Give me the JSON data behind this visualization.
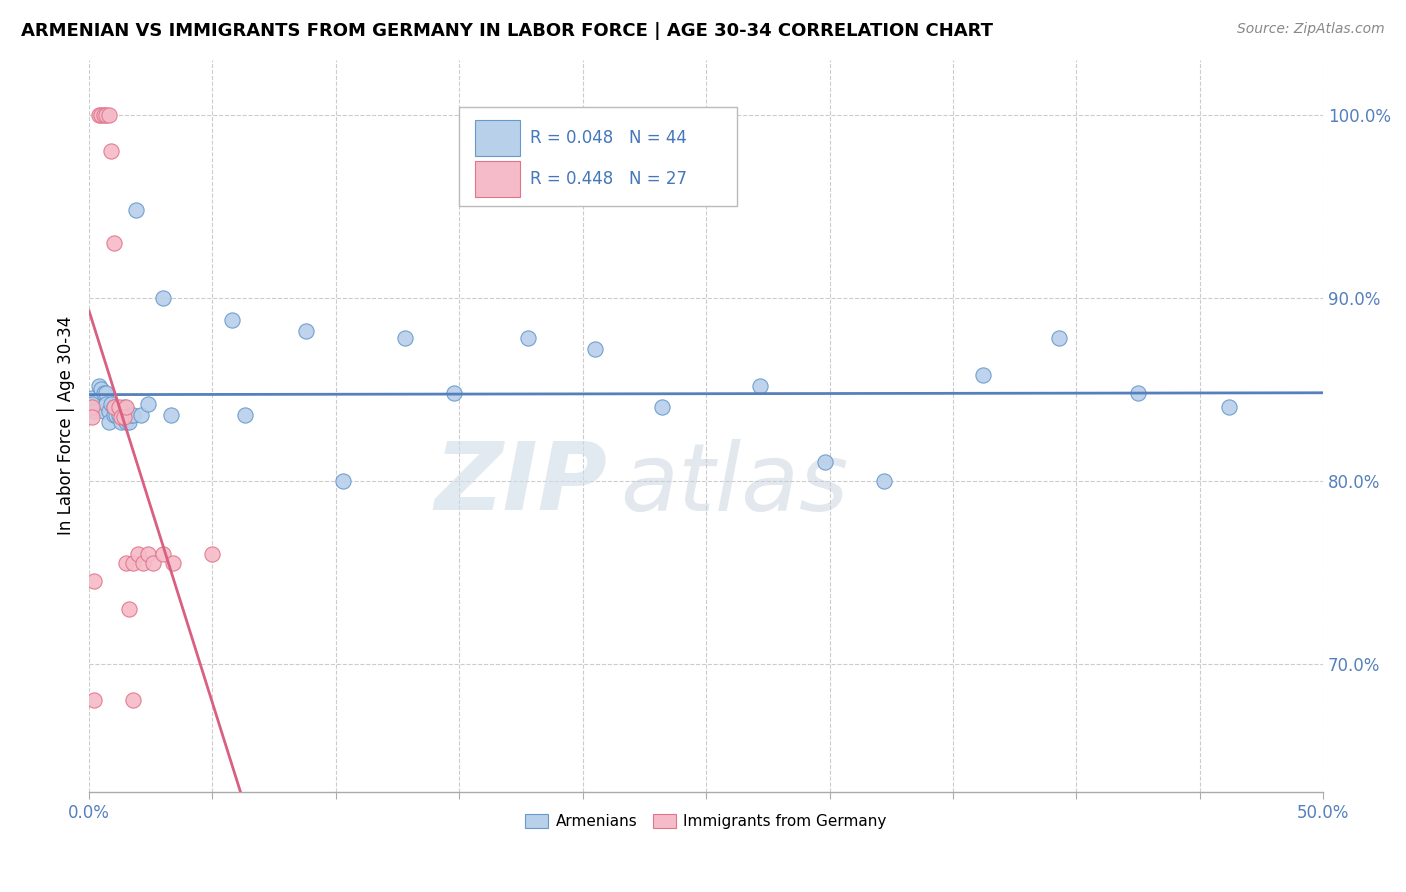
{
  "title": "ARMENIAN VS IMMIGRANTS FROM GERMANY IN LABOR FORCE | AGE 30-34 CORRELATION CHART",
  "source": "Source: ZipAtlas.com",
  "ylabel": "In Labor Force | Age 30-34",
  "xlim": [
    0.0,
    0.5
  ],
  "ylim": [
    0.63,
    1.03
  ],
  "yticks": [
    0.7,
    0.8,
    0.9,
    1.0
  ],
  "ytick_labels": [
    "70.0%",
    "80.0%",
    "90.0%",
    "100.0%"
  ],
  "watermark_zip": "ZIP",
  "watermark_atlas": "atlas",
  "legend_blue_r": "R = 0.048",
  "legend_blue_n": "N = 44",
  "legend_pink_r": "R = 0.448",
  "legend_pink_n": "N = 27",
  "blue_fill": "#b8d0ea",
  "blue_edge": "#6699cc",
  "pink_fill": "#f5bbc8",
  "pink_edge": "#e0748a",
  "blue_line": "#5580bb",
  "pink_line": "#d96080",
  "legend_r_color": "#4477bb",
  "legend_n_color": "#4477bb",
  "background_color": "#ffffff",
  "grid_color": "#cccccc",
  "armenians_x": [
    0.001,
    0.001,
    0.001,
    0.003,
    0.005,
    0.005,
    0.005,
    0.007,
    0.007,
    0.007,
    0.008,
    0.01,
    0.01,
    0.01,
    0.012,
    0.013,
    0.013,
    0.015,
    0.015,
    0.016,
    0.017,
    0.018,
    0.018,
    0.02,
    0.022,
    0.025,
    0.03,
    0.032,
    0.06,
    0.065,
    0.09,
    0.105,
    0.13,
    0.145,
    0.175,
    0.2,
    0.23,
    0.27,
    0.295,
    0.32,
    0.36,
    0.39,
    0.42,
    0.46
  ],
  "armenians_y": [
    0.845,
    0.84,
    0.835,
    0.855,
    0.85,
    0.845,
    0.835,
    0.845,
    0.84,
    0.835,
    0.83,
    0.84,
    0.838,
    0.835,
    0.835,
    0.835,
    0.83,
    0.838,
    0.835,
    0.83,
    0.83,
    0.835,
    0.835,
    0.95,
    0.835,
    0.84,
    0.9,
    0.835,
    0.89,
    0.835,
    0.885,
    0.8,
    0.88,
    0.85,
    0.88,
    0.875,
    0.84,
    0.855,
    0.81,
    0.8,
    0.86,
    0.88,
    0.85,
    0.84
  ],
  "germany_x": [
    0.001,
    0.001,
    0.003,
    0.003,
    0.005,
    0.006,
    0.007,
    0.008,
    0.009,
    0.01,
    0.01,
    0.011,
    0.013,
    0.013,
    0.013,
    0.014,
    0.015,
    0.016,
    0.017,
    0.018,
    0.018,
    0.02,
    0.022,
    0.025,
    0.03,
    0.033,
    0.05
  ],
  "germany_y": [
    0.84,
    0.835,
    0.84,
    0.835,
    0.84,
    0.835,
    0.835,
    0.84,
    0.845,
    0.84,
    0.85,
    0.76,
    0.84,
    0.835,
    0.83,
    0.84,
    0.75,
    0.735,
    0.685,
    0.76,
    0.755,
    0.76,
    0.755,
    0.76,
    0.755,
    0.755,
    0.76
  ]
}
